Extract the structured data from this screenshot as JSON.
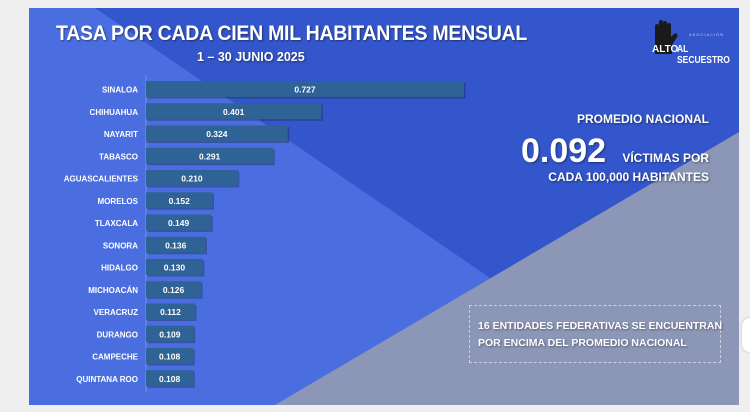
{
  "header": {
    "title": "TASA POR CADA CIEN MIL HABITANTES MENSUAL",
    "subtitle": "1 – 30 JUNIO 2025"
  },
  "logo": {
    "text_alto": "ALTO",
    "text_al": "AL SECUESTRO",
    "text_asociacion": "ASOCIACIÓN",
    "icon": "hand-icon"
  },
  "summary": {
    "label": "PROMEDIO NACIONAL",
    "value": "0.092",
    "unit_line1": "VÍCTIMAS POR",
    "unit_line2": "CADA 100,000 HABITANTES"
  },
  "note": {
    "line1": "16 ENTIDADES FEDERATIVAS SE ENCUENTRAN",
    "line2": "POR ENCIMA DEL PROMEDIO NACIONAL"
  },
  "colors": {
    "dark_blue": "#3456cc",
    "light_blue": "#4a6ee0",
    "gray": "#8c97b7",
    "bar": "#2f6295"
  },
  "chart_data": {
    "type": "bar",
    "orientation": "horizontal",
    "title": "TASA POR CADA CIEN MIL HABITANTES MENSUAL",
    "categories": [
      "SINALOA",
      "CHIHUAHUA",
      "NAYARIT",
      "TABASCO",
      "AGUASCALIENTES",
      "MORELOS",
      "TLAXCALA",
      "SONORA",
      "HIDALGO",
      "MICHOACÁN",
      "VERACRUZ",
      "DURANGO",
      "CAMPECHE",
      "QUINTANA ROO"
    ],
    "values": [
      0.727,
      0.401,
      0.324,
      0.291,
      0.21,
      0.152,
      0.149,
      0.136,
      0.13,
      0.126,
      0.112,
      0.109,
      0.108,
      0.108
    ],
    "labels": [
      "0.727",
      "0.401",
      "0.324",
      "0.291",
      "0.210",
      "0.152",
      "0.149",
      "0.136",
      "0.130",
      "0.126",
      "0.112",
      "0.109",
      "0.108",
      "0.108"
    ],
    "xlim": [
      0,
      0.727
    ],
    "grid": false,
    "legend": "none"
  }
}
